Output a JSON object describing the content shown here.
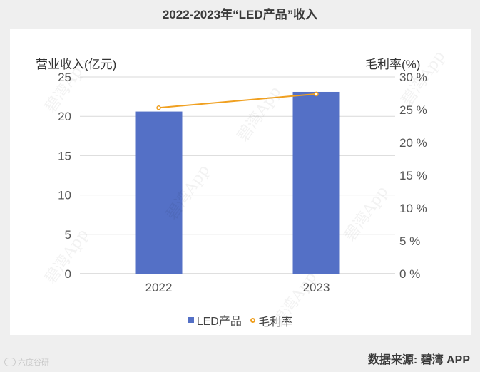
{
  "chart_data": {
    "type": "bar",
    "title": "2022-2023年“LED产品”收入",
    "categories": [
      "2022",
      "2023"
    ],
    "series": [
      {
        "name": "LED产品",
        "type": "bar",
        "axis": "left",
        "values": [
          20.6,
          23.1
        ],
        "color": "#5470c6"
      },
      {
        "name": "毛利率",
        "type": "line",
        "axis": "right",
        "values": [
          25.3,
          27.4
        ],
        "color": "#f0a020"
      }
    ],
    "ylabel": "营业收入(亿元)",
    "ylim": [
      0,
      25
    ],
    "yticks": [
      "0",
      "5",
      "10",
      "15",
      "20",
      "25"
    ],
    "y2label": "毛利率(%)",
    "y2lim": [
      0,
      30
    ],
    "y2ticks": [
      "0 %",
      "5 %",
      "10 %",
      "15 %",
      "20 %",
      "25 %",
      "30 %"
    ],
    "grid": true,
    "legend_position": "bottom"
  },
  "watermark_text": "碧湾App",
  "source": "数据来源: 碧湾 APP",
  "corner_logo": "六度谷研"
}
